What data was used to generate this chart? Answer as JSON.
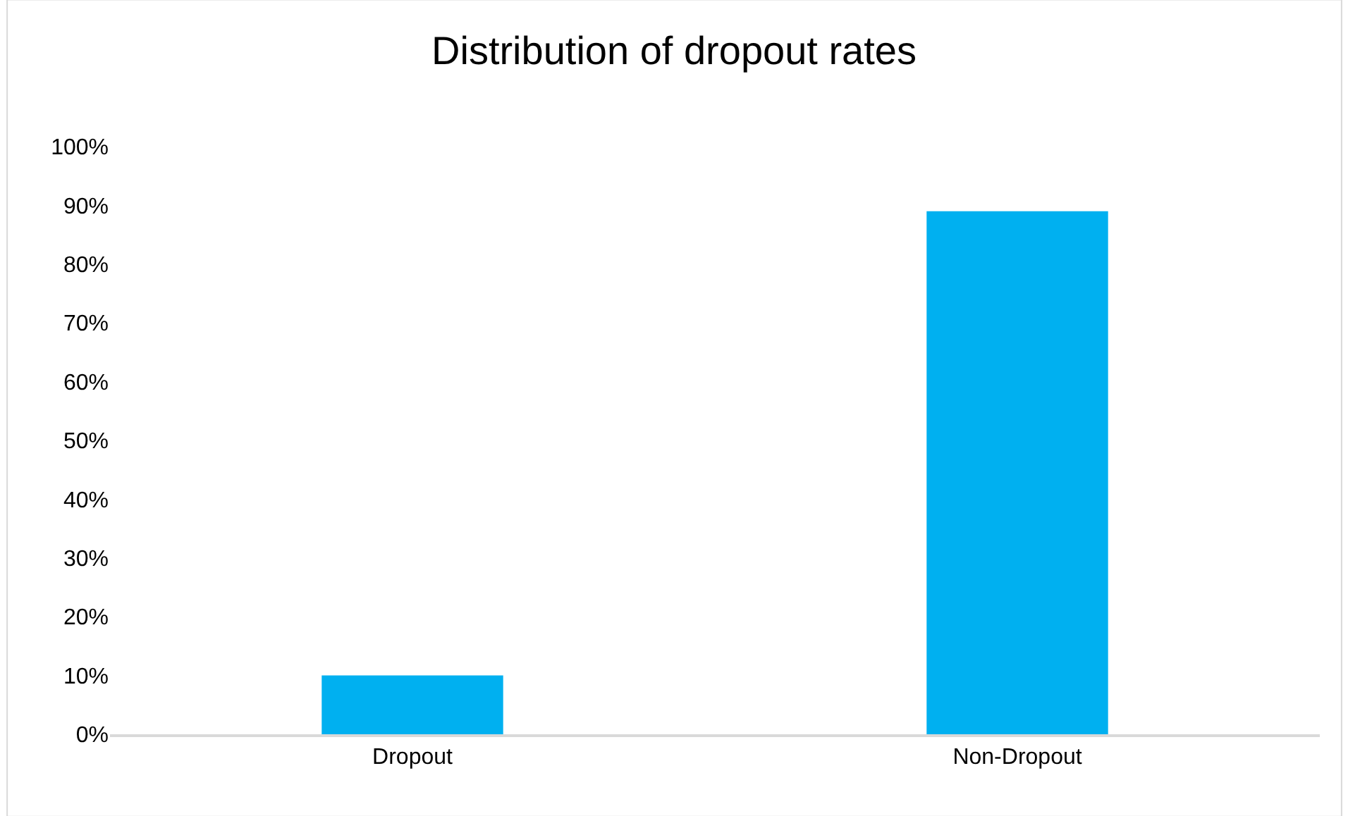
{
  "chart_data": {
    "type": "bar",
    "title": "Distribution of dropout rates",
    "categories": [
      "Dropout",
      "Non-Dropout"
    ],
    "values": [
      10,
      89
    ],
    "color": "#00b0f0",
    "ylim": [
      0,
      100
    ],
    "yticks": [
      {
        "value": 0,
        "label": "0%"
      },
      {
        "value": 10,
        "label": "10%"
      },
      {
        "value": 20,
        "label": "20%"
      },
      {
        "value": 30,
        "label": "30%"
      },
      {
        "value": 40,
        "label": "40%"
      },
      {
        "value": 50,
        "label": "50%"
      },
      {
        "value": 60,
        "label": "60%"
      },
      {
        "value": 70,
        "label": "70%"
      },
      {
        "value": 80,
        "label": "80%"
      },
      {
        "value": 90,
        "label": "90%"
      },
      {
        "value": 100,
        "label": "100%"
      }
    ]
  }
}
